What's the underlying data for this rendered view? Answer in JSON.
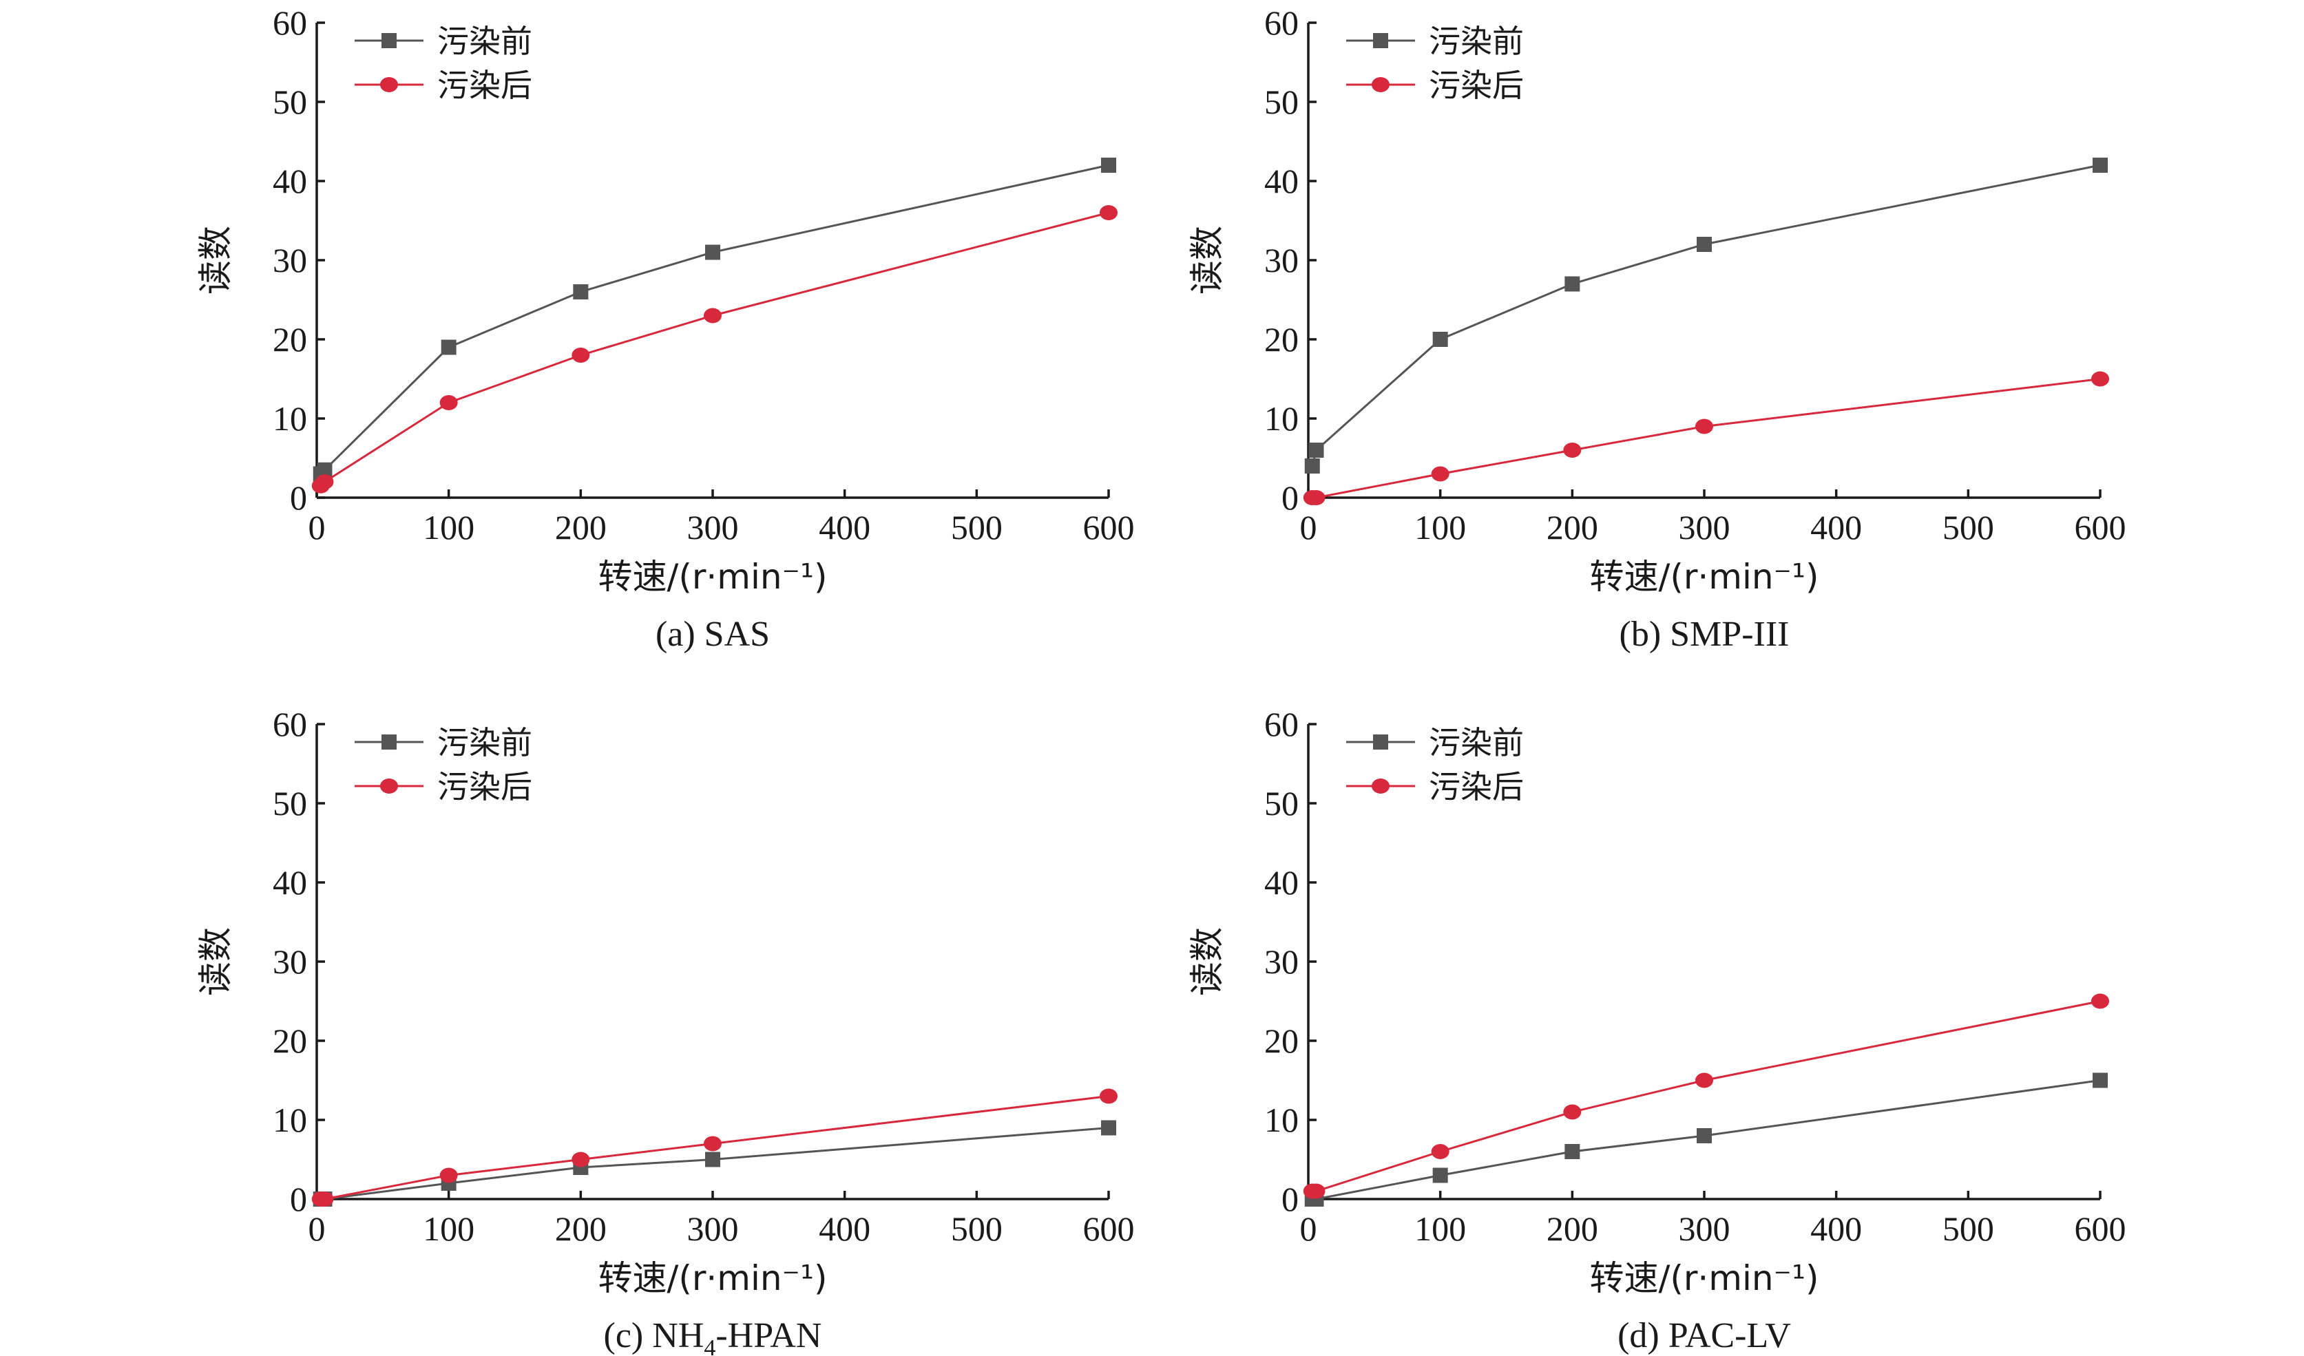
{
  "colors": {
    "before": "#555555",
    "after": "#d8283c",
    "axis": "#1a1a1a"
  },
  "legend": {
    "before": "污染前",
    "after": "污染后"
  },
  "chart_data": [
    {
      "type": "line",
      "caption": "(a) SAS",
      "xlabel": "转速/(r·min⁻¹)",
      "ylabel": "读数",
      "xlim": [
        0,
        600
      ],
      "ylim": [
        0,
        60
      ],
      "xticks": [
        "0",
        "100",
        "200",
        "300",
        "400",
        "500",
        "600"
      ],
      "yticks": [
        "0",
        "10",
        "20",
        "30",
        "40",
        "50",
        "60"
      ],
      "legend_position": "top-left",
      "series": [
        {
          "name": "污染前",
          "marker": "square",
          "color": "#555555",
          "x": [
            3,
            6,
            100,
            200,
            300,
            600
          ],
          "y": [
            3,
            3.5,
            19,
            26,
            31,
            42
          ]
        },
        {
          "name": "污染后",
          "marker": "circle",
          "color": "#d8283c",
          "x": [
            3,
            6,
            100,
            200,
            300,
            600
          ],
          "y": [
            1.5,
            2,
            12,
            18,
            23,
            36
          ]
        }
      ]
    },
    {
      "type": "line",
      "caption": "(b) SMP-III",
      "xlabel": "转速/(r·min⁻¹)",
      "ylabel": "读数",
      "xlim": [
        0,
        600
      ],
      "ylim": [
        0,
        60
      ],
      "xticks": [
        "0",
        "100",
        "200",
        "300",
        "400",
        "500",
        "600"
      ],
      "yticks": [
        "0",
        "10",
        "20",
        "30",
        "40",
        "50",
        "60"
      ],
      "legend_position": "top-left",
      "series": [
        {
          "name": "污染前",
          "marker": "square",
          "color": "#555555",
          "x": [
            3,
            6,
            100,
            200,
            300,
            600
          ],
          "y": [
            4,
            6,
            20,
            27,
            32,
            42
          ]
        },
        {
          "name": "污染后",
          "marker": "circle",
          "color": "#d8283c",
          "x": [
            3,
            6,
            100,
            200,
            300,
            600
          ],
          "y": [
            0,
            0,
            3,
            6,
            9,
            15
          ]
        }
      ]
    },
    {
      "type": "line",
      "caption": "(c) NH4-HPAN",
      "caption_parts": {
        "before_sub": "(c) NH",
        "sub": "4",
        "after_sub": "-HPAN"
      },
      "xlabel": "转速/(r·min⁻¹)",
      "ylabel": "读数",
      "xlim": [
        0,
        600
      ],
      "ylim": [
        0,
        60
      ],
      "xticks": [
        "0",
        "100",
        "200",
        "300",
        "400",
        "500",
        "600"
      ],
      "yticks": [
        "0",
        "10",
        "20",
        "30",
        "40",
        "50",
        "60"
      ],
      "legend_position": "top-left",
      "series": [
        {
          "name": "污染前",
          "marker": "square",
          "color": "#555555",
          "x": [
            3,
            6,
            100,
            200,
            300,
            600
          ],
          "y": [
            0,
            0,
            2,
            4,
            5,
            9
          ]
        },
        {
          "name": "污染后",
          "marker": "circle",
          "color": "#d8283c",
          "x": [
            3,
            6,
            100,
            200,
            300,
            600
          ],
          "y": [
            0,
            0,
            3,
            5,
            7,
            13
          ]
        }
      ]
    },
    {
      "type": "line",
      "caption": "(d) PAC-LV",
      "xlabel": "转速/(r·min⁻¹)",
      "ylabel": "读数",
      "xlim": [
        0,
        600
      ],
      "ylim": [
        0,
        60
      ],
      "xticks": [
        "0",
        "100",
        "200",
        "300",
        "400",
        "500",
        "600"
      ],
      "yticks": [
        "0",
        "10",
        "20",
        "30",
        "40",
        "50",
        "60"
      ],
      "legend_position": "top-left",
      "series": [
        {
          "name": "污染前",
          "marker": "square",
          "color": "#555555",
          "x": [
            3,
            6,
            100,
            200,
            300,
            600
          ],
          "y": [
            0,
            0,
            3,
            6,
            8,
            15
          ]
        },
        {
          "name": "污染后",
          "marker": "circle",
          "color": "#d8283c",
          "x": [
            3,
            6,
            100,
            200,
            300,
            600
          ],
          "y": [
            1,
            1,
            6,
            11,
            15,
            25
          ]
        }
      ]
    }
  ]
}
